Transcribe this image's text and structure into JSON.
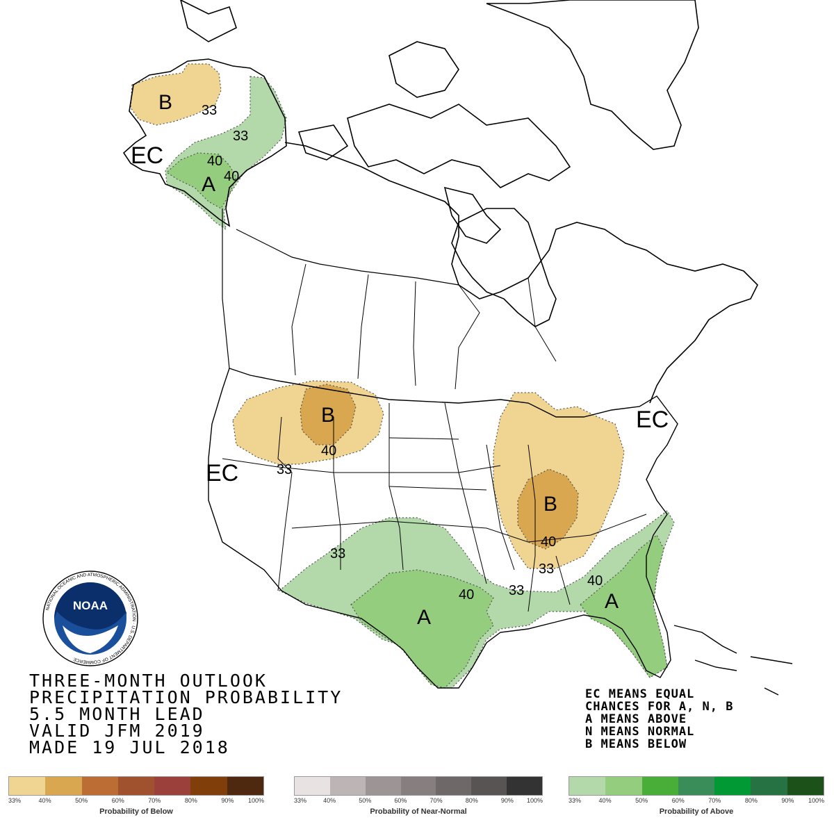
{
  "title_lines": [
    "THREE-MONTH OUTLOOK",
    "PRECIPITATION PROBABILITY",
    "5.5 MONTH LEAD",
    "VALID JFM 2019",
    "MADE 19 JUL 2018"
  ],
  "key_lines": [
    "EC MEANS EQUAL",
    "CHANCES FOR A, N, B",
    "A MEANS ABOVE",
    "N MEANS NORMAL",
    "B MEANS BELOW"
  ],
  "logo": {
    "text": "NOAA",
    "ring_text": "NATIONAL OCEANIC AND ATMOSPHERIC ADMINISTRATION · U.S. DEPARTMENT OF COMMERCE"
  },
  "map_labels": {
    "alaska_b": "B",
    "alaska_33_b": "33",
    "alaska_33_a": "33",
    "alaska_40_a": "40",
    "alaska_40_b": "40",
    "alaska_a": "A",
    "alaska_ec": "EC",
    "nw_b": "B",
    "nw_40": "40",
    "nw_33": "33",
    "west_ec": "EC",
    "ohio_b": "B",
    "ohio_40": "40",
    "ohio_33": "33",
    "ne_ec": "EC",
    "south_33": "33",
    "south_40": "40",
    "south_a": "A",
    "se_33": "33",
    "se_40": "40",
    "se_a": "A"
  },
  "legends": [
    {
      "title": "Probability of Below",
      "ticks": [
        "33%",
        "40%",
        "50%",
        "60%",
        "70%",
        "80%",
        "90%",
        "100%"
      ],
      "colors": [
        "#f0d491",
        "#d8a750",
        "#bb6d33",
        "#a0512d",
        "#9b403b",
        "#803e0b",
        "#4e2910"
      ]
    },
    {
      "title": "Probability of Near-Normal",
      "ticks": [
        "33%",
        "40%",
        "50%",
        "60%",
        "70%",
        "80%",
        "90%",
        "100%"
      ],
      "colors": [
        "#e8e2e2",
        "#bdb5b5",
        "#9d9595",
        "#877f7f",
        "#6e6868",
        "#595454",
        "#333333"
      ]
    },
    {
      "title": "Probability of Above",
      "ticks": [
        "33%",
        "40%",
        "50%",
        "60%",
        "70%",
        "80%",
        "90%",
        "100%"
      ],
      "colors": [
        "#b3d9ab",
        "#94cd7e",
        "#48ae38",
        "#3a8c58",
        "#009933",
        "#267242",
        "#1c5119"
      ]
    }
  ],
  "colors": {
    "below_33": "#f0d491",
    "below_40": "#d8a750",
    "above_33": "#b3d9ab",
    "above_40": "#94cd7e"
  }
}
